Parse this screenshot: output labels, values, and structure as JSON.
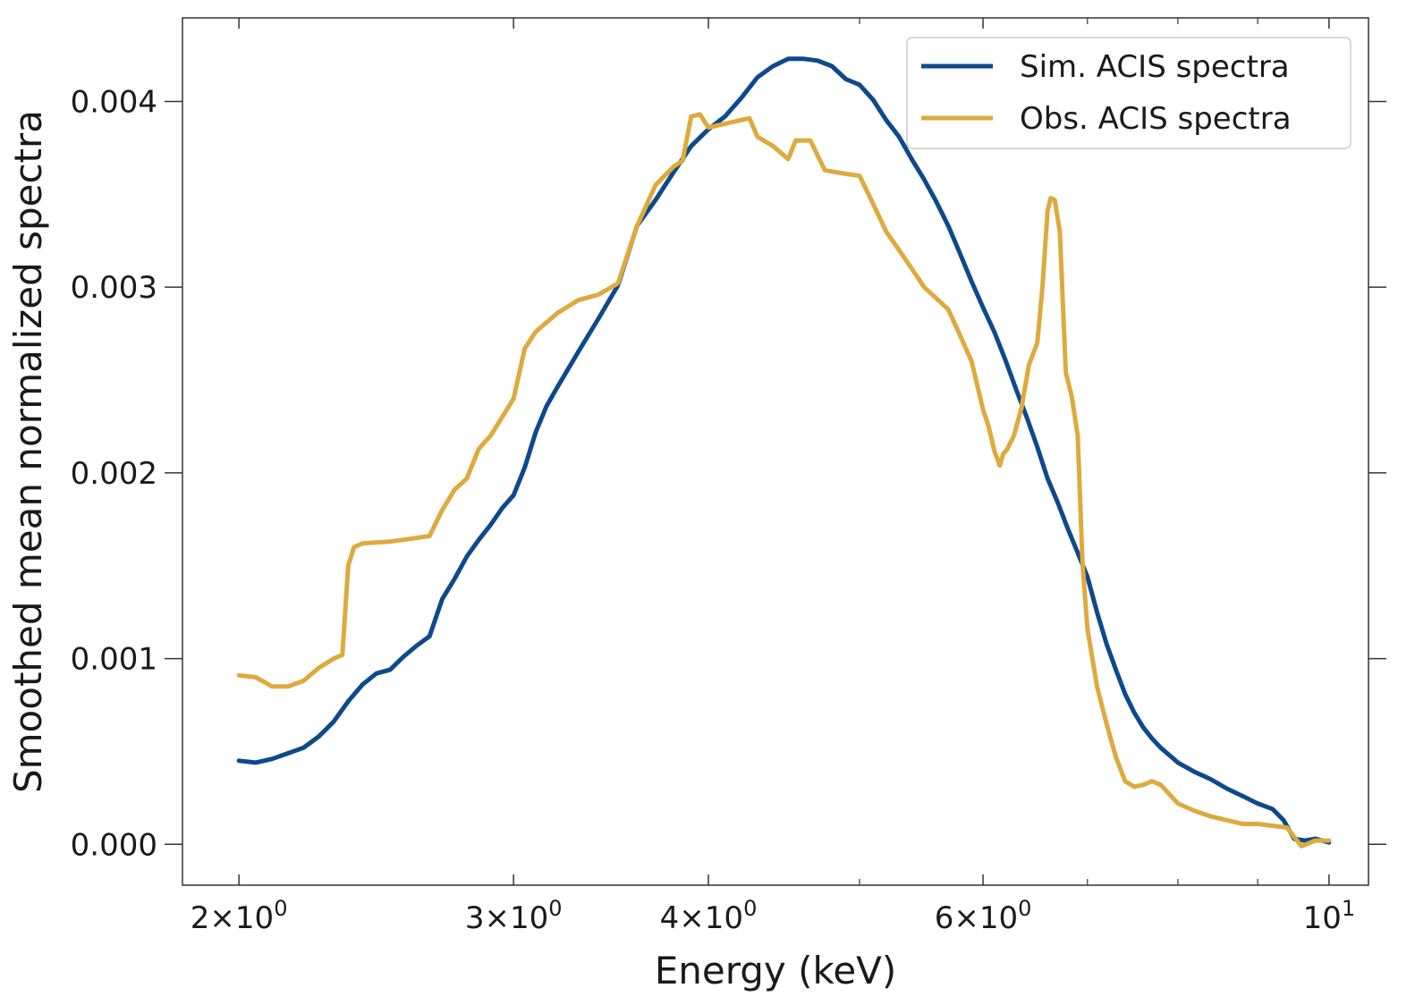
{
  "chart_data": {
    "type": "line",
    "title": "",
    "xlabel": "Energy (keV)",
    "ylabel": "Smoothed mean normalized spectra",
    "xscale": "log",
    "xlim": [
      1.84,
      10.6
    ],
    "ylim": [
      -0.00022,
      0.00445
    ],
    "grid": false,
    "legend_position": "top-right",
    "x_ticks": [
      {
        "value": 2,
        "mantissa": "2",
        "exponent": "0"
      },
      {
        "value": 3,
        "mantissa": "3",
        "exponent": "0"
      },
      {
        "value": 4,
        "mantissa": "4",
        "exponent": "0"
      },
      {
        "value": 6,
        "mantissa": "6",
        "exponent": "0"
      },
      {
        "value": 10,
        "mantissa": "",
        "exponent": "1"
      }
    ],
    "x_minor_ticks": [
      5,
      7,
      8,
      9
    ],
    "y_ticks": [
      {
        "value": 0.0,
        "label": "0.000"
      },
      {
        "value": 0.001,
        "label": "0.001"
      },
      {
        "value": 0.002,
        "label": "0.002"
      },
      {
        "value": 0.003,
        "label": "0.003"
      },
      {
        "value": 0.004,
        "label": "0.004"
      }
    ],
    "series": [
      {
        "name": "Sim. ACIS spectra",
        "color": "#0d4a8c",
        "points": [
          [
            2.0,
            0.00045
          ],
          [
            2.05,
            0.00044
          ],
          [
            2.1,
            0.00046
          ],
          [
            2.15,
            0.00049
          ],
          [
            2.2,
            0.00052
          ],
          [
            2.25,
            0.00058
          ],
          [
            2.3,
            0.00066
          ],
          [
            2.35,
            0.00077
          ],
          [
            2.4,
            0.00086
          ],
          [
            2.45,
            0.00092
          ],
          [
            2.5,
            0.00094
          ],
          [
            2.55,
            0.00101
          ],
          [
            2.6,
            0.00107
          ],
          [
            2.65,
            0.00112
          ],
          [
            2.7,
            0.00132
          ],
          [
            2.75,
            0.00143
          ],
          [
            2.8,
            0.00155
          ],
          [
            2.85,
            0.00164
          ],
          [
            2.9,
            0.00172
          ],
          [
            2.95,
            0.00181
          ],
          [
            3.0,
            0.00188
          ],
          [
            3.05,
            0.00203
          ],
          [
            3.1,
            0.00222
          ],
          [
            3.15,
            0.00236
          ],
          [
            3.2,
            0.00246
          ],
          [
            3.3,
            0.00265
          ],
          [
            3.4,
            0.00283
          ],
          [
            3.5,
            0.00301
          ],
          [
            3.6,
            0.00333
          ],
          [
            3.7,
            0.00347
          ],
          [
            3.8,
            0.00362
          ],
          [
            3.9,
            0.00376
          ],
          [
            4.0,
            0.00385
          ],
          [
            4.1,
            0.00392
          ],
          [
            4.2,
            0.00402
          ],
          [
            4.3,
            0.00413
          ],
          [
            4.4,
            0.00419
          ],
          [
            4.5,
            0.00423
          ],
          [
            4.6,
            0.00423
          ],
          [
            4.7,
            0.00422
          ],
          [
            4.8,
            0.00419
          ],
          [
            4.9,
            0.00412
          ],
          [
            5.0,
            0.00409
          ],
          [
            5.1,
            0.00401
          ],
          [
            5.2,
            0.0039
          ],
          [
            5.3,
            0.00381
          ],
          [
            5.4,
            0.00369
          ],
          [
            5.5,
            0.00358
          ],
          [
            5.6,
            0.00346
          ],
          [
            5.7,
            0.00333
          ],
          [
            5.8,
            0.00318
          ],
          [
            5.9,
            0.00303
          ],
          [
            6.0,
            0.00289
          ],
          [
            6.1,
            0.00276
          ],
          [
            6.2,
            0.00261
          ],
          [
            6.3,
            0.00245
          ],
          [
            6.4,
            0.0023
          ],
          [
            6.5,
            0.00214
          ],
          [
            6.6,
            0.00197
          ],
          [
            6.7,
            0.00184
          ],
          [
            6.8,
            0.0017
          ],
          [
            6.9,
            0.00157
          ],
          [
            7.0,
            0.00144
          ],
          [
            7.1,
            0.00125
          ],
          [
            7.2,
            0.00108
          ],
          [
            7.3,
            0.00094
          ],
          [
            7.4,
            0.00081
          ],
          [
            7.5,
            0.00071
          ],
          [
            7.6,
            0.00063
          ],
          [
            7.7,
            0.00057
          ],
          [
            7.8,
            0.00052
          ],
          [
            7.9,
            0.00048
          ],
          [
            8.0,
            0.00044
          ],
          [
            8.2,
            0.00039
          ],
          [
            8.4,
            0.00035
          ],
          [
            8.6,
            0.0003
          ],
          [
            8.8,
            0.00026
          ],
          [
            9.0,
            0.00022
          ],
          [
            9.2,
            0.00019
          ],
          [
            9.35,
            0.00013
          ],
          [
            9.5,
            3e-05
          ],
          [
            9.65,
            2e-05
          ],
          [
            9.8,
            3e-05
          ],
          [
            10.0,
            1e-05
          ]
        ]
      },
      {
        "name": "Obs. ACIS spectra",
        "color": "#deaa3e",
        "points": [
          [
            2.0,
            0.00091
          ],
          [
            2.05,
            0.0009
          ],
          [
            2.08,
            0.00087
          ],
          [
            2.1,
            0.00085
          ],
          [
            2.15,
            0.00085
          ],
          [
            2.2,
            0.00088
          ],
          [
            2.25,
            0.00095
          ],
          [
            2.3,
            0.001
          ],
          [
            2.33,
            0.00102
          ],
          [
            2.35,
            0.0015
          ],
          [
            2.37,
            0.0016
          ],
          [
            2.4,
            0.00162
          ],
          [
            2.5,
            0.00163
          ],
          [
            2.6,
            0.00165
          ],
          [
            2.65,
            0.00166
          ],
          [
            2.7,
            0.0018
          ],
          [
            2.75,
            0.00191
          ],
          [
            2.8,
            0.00197
          ],
          [
            2.85,
            0.00213
          ],
          [
            2.9,
            0.0022
          ],
          [
            2.95,
            0.0023
          ],
          [
            3.0,
            0.0024
          ],
          [
            3.05,
            0.00267
          ],
          [
            3.1,
            0.00276
          ],
          [
            3.2,
            0.00286
          ],
          [
            3.3,
            0.00293
          ],
          [
            3.4,
            0.00296
          ],
          [
            3.5,
            0.00302
          ],
          [
            3.6,
            0.00333
          ],
          [
            3.7,
            0.00355
          ],
          [
            3.8,
            0.00365
          ],
          [
            3.85,
            0.00368
          ],
          [
            3.9,
            0.00392
          ],
          [
            3.95,
            0.00393
          ],
          [
            4.0,
            0.00386
          ],
          [
            4.1,
            0.00388
          ],
          [
            4.2,
            0.0039
          ],
          [
            4.25,
            0.00391
          ],
          [
            4.3,
            0.00381
          ],
          [
            4.4,
            0.00376
          ],
          [
            4.5,
            0.00369
          ],
          [
            4.55,
            0.00379
          ],
          [
            4.65,
            0.00379
          ],
          [
            4.75,
            0.00363
          ],
          [
            4.9,
            0.00361
          ],
          [
            5.0,
            0.0036
          ],
          [
            5.1,
            0.00345
          ],
          [
            5.2,
            0.0033
          ],
          [
            5.3,
            0.0032
          ],
          [
            5.4,
            0.0031
          ],
          [
            5.5,
            0.003
          ],
          [
            5.6,
            0.00294
          ],
          [
            5.7,
            0.00288
          ],
          [
            5.8,
            0.00274
          ],
          [
            5.9,
            0.0026
          ],
          [
            6.0,
            0.00234
          ],
          [
            6.05,
            0.00225
          ],
          [
            6.1,
            0.00212
          ],
          [
            6.15,
            0.00204
          ],
          [
            6.18,
            0.0021
          ],
          [
            6.22,
            0.00213
          ],
          [
            6.28,
            0.0022
          ],
          [
            6.35,
            0.00235
          ],
          [
            6.42,
            0.00258
          ],
          [
            6.5,
            0.0027
          ],
          [
            6.55,
            0.003
          ],
          [
            6.6,
            0.00341
          ],
          [
            6.63,
            0.00348
          ],
          [
            6.67,
            0.00347
          ],
          [
            6.72,
            0.0033
          ],
          [
            6.78,
            0.00254
          ],
          [
            6.84,
            0.00241
          ],
          [
            6.9,
            0.0022
          ],
          [
            6.95,
            0.0015
          ],
          [
            7.0,
            0.00116
          ],
          [
            7.1,
            0.00085
          ],
          [
            7.2,
            0.00065
          ],
          [
            7.3,
            0.00047
          ],
          [
            7.4,
            0.00034
          ],
          [
            7.5,
            0.00031
          ],
          [
            7.6,
            0.00032
          ],
          [
            7.7,
            0.00034
          ],
          [
            7.8,
            0.00032
          ],
          [
            7.9,
            0.00027
          ],
          [
            8.0,
            0.00022
          ],
          [
            8.2,
            0.00018
          ],
          [
            8.4,
            0.00015
          ],
          [
            8.6,
            0.00013
          ],
          [
            8.8,
            0.00011
          ],
          [
            9.0,
            0.00011
          ],
          [
            9.2,
            0.0001
          ],
          [
            9.4,
            9e-05
          ],
          [
            9.6,
            -1e-05
          ],
          [
            9.8,
            2e-05
          ],
          [
            10.0,
            2e-05
          ]
        ]
      }
    ]
  }
}
